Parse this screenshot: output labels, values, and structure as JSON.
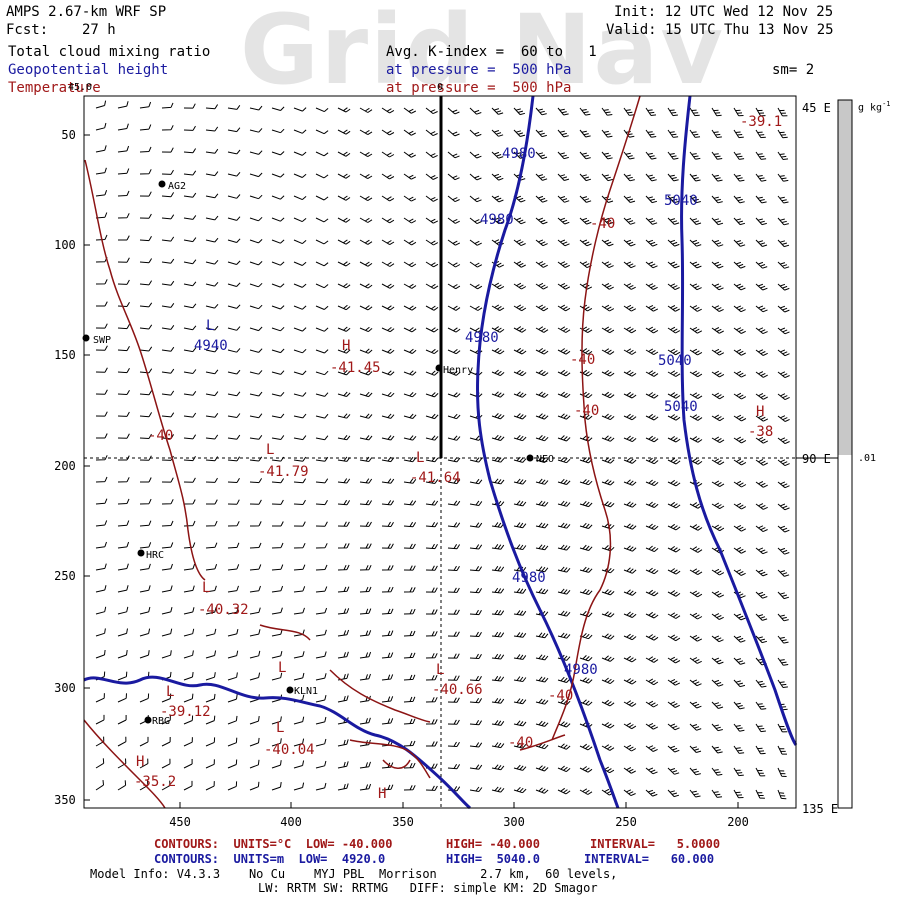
{
  "watermark": "Grid Nav",
  "header": {
    "model": "AMPS 2.67-km WRF SP",
    "fcst_label": "Fcst:",
    "fcst_value": "27 h",
    "init": "Init: 12 UTC Wed 12 Nov 25",
    "valid": "Valid: 15 UTC Thu 13 Nov 25",
    "field1": "Total cloud mixing ratio",
    "field1_avg": "Avg. K-index =  60 to   1",
    "field2": "Geopotential height",
    "field2_level": "at pressure =  500 hPa",
    "field3": "Temperature",
    "field3_level": "at pressure =  500 hPa",
    "sm": "sm= 2"
  },
  "colorbar": {
    "units": "g kg",
    "units_sup": "-1",
    "value": ".01",
    "fill_color": "#c8c8c8"
  },
  "axes": {
    "y_ticks": [
      "50",
      "100",
      "150",
      "200",
      "250",
      "300",
      "350"
    ],
    "x_ticks": [
      "450",
      "400",
      "350",
      "300",
      "250",
      "200"
    ],
    "lon_labels": [
      "45 E",
      "90 E",
      "135 E"
    ],
    "lon_top_labels": [
      "45.0",
      "0"
    ]
  },
  "stations": [
    {
      "label": "AG2"
    },
    {
      "label": "SWP"
    },
    {
      "label": "Henry"
    },
    {
      "label": "NEO"
    },
    {
      "label": "HRC"
    },
    {
      "label": "KLN1"
    },
    {
      "label": "RBG"
    }
  ],
  "height_labels": [
    "4980",
    "4980",
    "4940",
    "4980",
    "5040",
    "5040",
    "5040",
    "4980",
    "4980"
  ],
  "temp_labels": [
    "-39.1",
    "-40",
    "-41.45",
    "-40",
    "-40",
    "-38",
    "-40",
    "-41.79",
    "-41.64",
    "-40.32",
    "-39.12",
    "-40.04",
    "-40.66",
    "-40",
    "-40",
    "-35.2"
  ],
  "hl_marks": [
    "L",
    "H",
    "L",
    "L",
    "L",
    "L",
    "L",
    "L",
    "H",
    "H",
    "H",
    "L"
  ],
  "footer": {
    "red_line_a": "CONTOURS:  UNITS=°C  LOW= -40.000",
    "red_line_b": "HIGH= -40.000",
    "red_line_c": "INTERVAL=   5.0000",
    "blue_line_a": "CONTOURS:  UNITS=m  LOW=  4920.0",
    "blue_line_b": "HIGH=  5040.0",
    "blue_line_c": "INTERVAL=   60.000",
    "model_info": "Model Info: V4.3.3    No Cu    MYJ PBL  Morrison      2.7 km,  60 levels,",
    "model_info2": "LW: RRTM SW: RRTMG   DIFF: simple KM: 2D Smagor"
  },
  "colors": {
    "height": "#1a1aa0",
    "temp": "#a01818",
    "wind": "#000000"
  }
}
